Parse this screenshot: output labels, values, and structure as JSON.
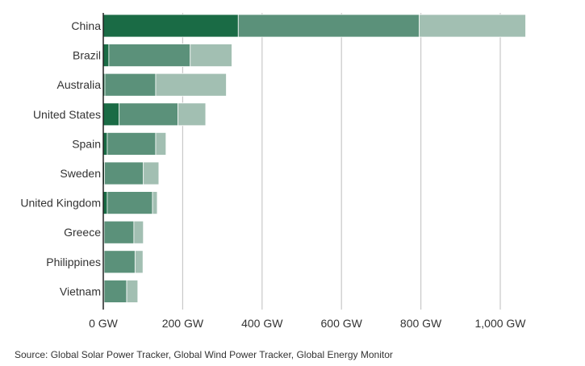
{
  "chart_data": {
    "type": "bar",
    "orientation": "horizontal",
    "stacked": true,
    "title": "",
    "xlabel": "",
    "ylabel": "",
    "xlim": [
      0,
      1100
    ],
    "x_ticks": [
      {
        "value": 0,
        "label": "0 GW"
      },
      {
        "value": 200,
        "label": "200 GW"
      },
      {
        "value": 400,
        "label": "400 GW"
      },
      {
        "value": 600,
        "label": "600 GW"
      },
      {
        "value": 800,
        "label": "800 GW"
      },
      {
        "value": 1000,
        "label": "1,000 GW"
      }
    ],
    "grid": "vertical",
    "legend": "none",
    "categories": [
      "China",
      "Brazil",
      "Australia",
      "United States",
      "Spain",
      "Sweden",
      "United Kingdom",
      "Greece",
      "Philippines",
      "Vietnam"
    ],
    "series": [
      {
        "color": "#1a6b45",
        "values": [
          340,
          14,
          4,
          40,
          10,
          3,
          10,
          2,
          2,
          2
        ]
      },
      {
        "color": "#5b917a",
        "values": [
          456,
          205,
          128,
          148,
          122,
          98,
          114,
          75,
          78,
          57
        ]
      },
      {
        "color": "#a2bfb2",
        "values": [
          268,
          105,
          178,
          70,
          26,
          39,
          12,
          24,
          20,
          28
        ]
      }
    ]
  },
  "source": "Source: Global Solar Power Tracker, Global Wind Power Tracker, Global Energy Monitor"
}
